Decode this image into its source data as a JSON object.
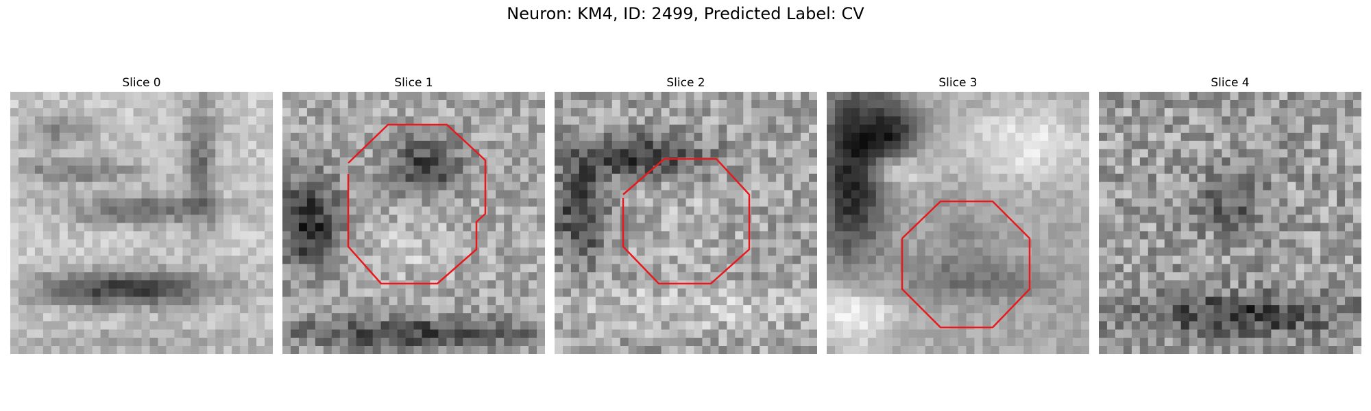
{
  "figure": {
    "title": "Neuron: KM4, ID: 2499, Predicted Label: CV"
  },
  "colors": {
    "outline": "#e8191c",
    "background": "#ffffff"
  },
  "slices": [
    {
      "label": "Slice 0",
      "has_outline": false
    },
    {
      "label": "Slice 1",
      "has_outline": true
    },
    {
      "label": "Slice 2",
      "has_outline": true
    },
    {
      "label": "Slice 3",
      "has_outline": true
    },
    {
      "label": "Slice 4",
      "has_outline": false
    }
  ]
}
